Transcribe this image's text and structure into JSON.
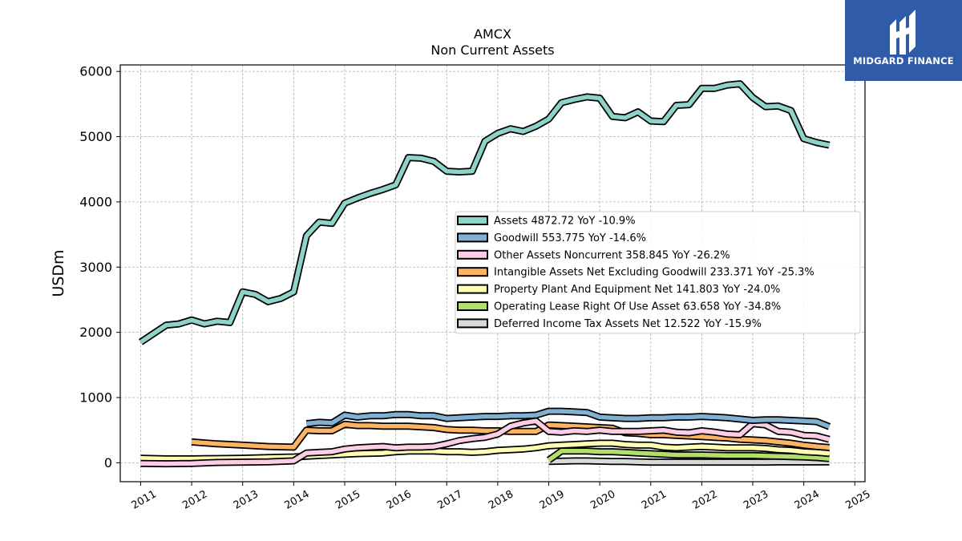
{
  "logo": {
    "text": "MIDGARD FINANCE"
  },
  "chart_data": {
    "type": "line",
    "title": "AMCX",
    "subtitle": "Non Current  Assets",
    "ylabel": "USDm",
    "xlabel": "",
    "xlim": [
      2010.6,
      2025.2
    ],
    "ylim": [
      -290,
      6100
    ],
    "yticks": [
      0,
      1000,
      2000,
      3000,
      4000,
      5000,
      6000
    ],
    "xticks": [
      2011,
      2012,
      2013,
      2014,
      2015,
      2016,
      2017,
      2018,
      2019,
      2020,
      2021,
      2022,
      2023,
      2024,
      2025
    ],
    "grid": true,
    "legend_position": "center-right",
    "series": [
      {
        "name": "Assets",
        "legend": "Assets  4872.72 YoY -10.9%",
        "color": "#8dd3c7",
        "x": [
          2011.0,
          2011.25,
          2011.5,
          2011.75,
          2012.0,
          2012.25,
          2012.5,
          2012.75,
          2013.0,
          2013.25,
          2013.5,
          2013.75,
          2014.0,
          2014.25,
          2014.5,
          2014.75,
          2015.0,
          2015.25,
          2015.5,
          2015.75,
          2016.0,
          2016.25,
          2016.5,
          2016.75,
          2017.0,
          2017.25,
          2017.5,
          2017.75,
          2018.0,
          2018.25,
          2018.5,
          2018.75,
          2019.0,
          2019.25,
          2019.5,
          2019.75,
          2020.0,
          2020.25,
          2020.5,
          2020.75,
          2021.0,
          2021.25,
          2021.5,
          2021.75,
          2022.0,
          2022.25,
          2022.5,
          2022.75,
          2023.0,
          2023.25,
          2023.5,
          2023.75,
          2024.0,
          2024.25,
          2024.5
        ],
        "y": [
          1850,
          1980,
          2110,
          2130,
          2190,
          2130,
          2170,
          2150,
          2620,
          2580,
          2470,
          2520,
          2620,
          3480,
          3690,
          3670,
          3980,
          4060,
          4130,
          4190,
          4260,
          4680,
          4670,
          4620,
          4470,
          4460,
          4470,
          4930,
          5050,
          5120,
          5080,
          5160,
          5270,
          5520,
          5570,
          5610,
          5590,
          5310,
          5290,
          5380,
          5240,
          5230,
          5480,
          5490,
          5740,
          5740,
          5790,
          5810,
          5600,
          5460,
          5470,
          5400,
          4970,
          4910,
          4870
        ]
      },
      {
        "name": "Goodwill",
        "legend": "Goodwill  553.775 YoY -14.6%",
        "color": "#80b1d3",
        "x": [
          2014.25,
          2014.5,
          2014.75,
          2015.0,
          2015.25,
          2015.5,
          2015.75,
          2016.0,
          2016.25,
          2016.5,
          2016.75,
          2017.0,
          2017.25,
          2017.5,
          2017.75,
          2018.0,
          2018.25,
          2018.5,
          2018.75,
          2019.0,
          2019.25,
          2019.5,
          2019.75,
          2020.0,
          2020.25,
          2020.5,
          2020.75,
          2021.0,
          2021.25,
          2021.5,
          2021.75,
          2022.0,
          2022.25,
          2022.5,
          2022.75,
          2023.0,
          2023.25,
          2023.5,
          2023.75,
          2024.0,
          2024.25,
          2024.5
        ],
        "y": [
          600,
          620,
          610,
          730,
          700,
          720,
          720,
          740,
          740,
          720,
          720,
          680,
          690,
          700,
          710,
          710,
          720,
          720,
          730,
          790,
          790,
          780,
          770,
          700,
          690,
          680,
          680,
          690,
          690,
          700,
          700,
          710,
          700,
          690,
          670,
          650,
          660,
          660,
          650,
          640,
          630,
          554
        ]
      },
      {
        "name": "Other Assets Noncurrent",
        "legend": "Other Assets Noncurrent  358.845 YoY -26.2%",
        "color": "#fccde5",
        "x": [
          2011.0,
          2011.5,
          2012.0,
          2012.5,
          2013.0,
          2013.5,
          2014.0,
          2014.25,
          2014.5,
          2014.75,
          2015.0,
          2015.25,
          2015.5,
          2015.75,
          2016.0,
          2016.25,
          2016.5,
          2016.75,
          2017.0,
          2017.25,
          2017.5,
          2017.75,
          2018.0,
          2018.25,
          2018.5,
          2018.75,
          2019.0,
          2019.25,
          2019.5,
          2019.75,
          2020.0,
          2020.25,
          2020.5,
          2020.75,
          2021.0,
          2021.25,
          2021.5,
          2021.75,
          2022.0,
          2022.25,
          2022.5,
          2022.75,
          2023.0,
          2023.25,
          2023.5,
          2023.75,
          2024.0,
          2024.25,
          2024.5
        ],
        "y": [
          -10,
          -15,
          -10,
          5,
          10,
          15,
          30,
          150,
          160,
          170,
          210,
          230,
          240,
          250,
          230,
          240,
          240,
          250,
          290,
          340,
          370,
          390,
          440,
          560,
          610,
          640,
          480,
          470,
          490,
          480,
          500,
          480,
          480,
          480,
          490,
          500,
          470,
          460,
          490,
          470,
          440,
          430,
          600,
          580,
          480,
          470,
          420,
          410,
          359
        ]
      },
      {
        "name": "Intangible Assets Net Excluding Goodwill",
        "legend": "Intangible Assets Net Excluding Goodwill  233.371 YoY -25.3%",
        "color": "#fdb462",
        "x": [
          2012.0,
          2012.5,
          2013.0,
          2013.5,
          2014.0,
          2014.25,
          2014.5,
          2014.75,
          2015.0,
          2015.25,
          2015.5,
          2015.75,
          2016.0,
          2016.25,
          2016.5,
          2016.75,
          2017.0,
          2017.25,
          2017.5,
          2017.75,
          2018.0,
          2018.25,
          2018.5,
          2018.75,
          2019.0,
          2019.25,
          2019.5,
          2019.75,
          2020.0,
          2020.25,
          2020.5,
          2020.75,
          2021.0,
          2021.25,
          2021.5,
          2021.75,
          2022.0,
          2022.25,
          2022.5,
          2022.75,
          2023.0,
          2023.25,
          2023.5,
          2023.75,
          2024.0,
          2024.25,
          2024.5
        ],
        "y": [
          320,
          290,
          270,
          250,
          240,
          500,
          490,
          490,
          590,
          570,
          570,
          560,
          560,
          560,
          550,
          540,
          510,
          500,
          500,
          490,
          490,
          480,
          480,
          480,
          580,
          570,
          560,
          550,
          540,
          530,
          460,
          450,
          430,
          430,
          420,
          410,
          400,
          390,
          380,
          360,
          350,
          340,
          320,
          300,
          270,
          250,
          233
        ]
      },
      {
        "name": "Property Plant And Equipment Net",
        "legend": "Property Plant And Equipment Net  141.803 YoY -24.0%",
        "color": "#ffffb3",
        "x": [
          2011.0,
          2011.5,
          2012.0,
          2012.5,
          2013.0,
          2013.5,
          2014.0,
          2014.25,
          2014.5,
          2014.75,
          2015.0,
          2015.25,
          2015.5,
          2015.75,
          2016.0,
          2016.25,
          2016.5,
          2016.75,
          2017.0,
          2017.25,
          2017.5,
          2017.75,
          2018.0,
          2018.25,
          2018.5,
          2018.75,
          2019.0,
          2019.25,
          2019.5,
          2019.75,
          2020.0,
          2020.25,
          2020.5,
          2020.75,
          2021.0,
          2021.25,
          2021.5,
          2021.75,
          2022.0,
          2022.25,
          2022.5,
          2022.75,
          2023.0,
          2023.25,
          2023.5,
          2023.75,
          2024.0,
          2024.25,
          2024.5
        ],
        "y": [
          70,
          60,
          60,
          65,
          70,
          80,
          90,
          100,
          110,
          120,
          130,
          140,
          145,
          150,
          170,
          180,
          180,
          180,
          170,
          170,
          160,
          170,
          190,
          200,
          210,
          230,
          260,
          270,
          280,
          290,
          300,
          300,
          280,
          270,
          270,
          240,
          230,
          240,
          250,
          240,
          230,
          230,
          230,
          220,
          200,
          190,
          170,
          160,
          142
        ]
      },
      {
        "name": "Operating Lease Right Of Use Asset",
        "legend": "Operating Lease Right Of Use Asset  63.658 YoY -34.8%",
        "color": "#b3de69",
        "x": [
          2019.0,
          2019.25,
          2019.5,
          2019.75,
          2020.0,
          2020.25,
          2020.5,
          2020.75,
          2021.0,
          2021.25,
          2021.5,
          2021.75,
          2022.0,
          2022.25,
          2022.5,
          2022.75,
          2023.0,
          2023.25,
          2023.5,
          2023.75,
          2024.0,
          2024.25,
          2024.5
        ],
        "y": [
          40,
          180,
          180,
          180,
          170,
          170,
          160,
          150,
          140,
          130,
          120,
          120,
          120,
          115,
          110,
          110,
          110,
          105,
          100,
          95,
          90,
          80,
          64
        ]
      },
      {
        "name": "Deferred Income Tax Assets Net",
        "legend": "Deferred Income Tax Assets Net  12.522 YoY -15.9%",
        "color": "#d9d9d9",
        "x": [
          2019.0,
          2019.25,
          2019.5,
          2019.75,
          2020.0,
          2020.25,
          2020.5,
          2020.75,
          2021.0,
          2021.25,
          2021.5,
          2021.75,
          2022.0,
          2022.25,
          2022.5,
          2022.75,
          2023.0,
          2023.25,
          2023.5,
          2023.75,
          2024.0,
          2024.25,
          2024.5
        ],
        "y": [
          20,
          25,
          30,
          30,
          25,
          20,
          20,
          15,
          10,
          10,
          10,
          10,
          10,
          10,
          10,
          10,
          10,
          10,
          12,
          12,
          12,
          12,
          13
        ]
      }
    ]
  }
}
